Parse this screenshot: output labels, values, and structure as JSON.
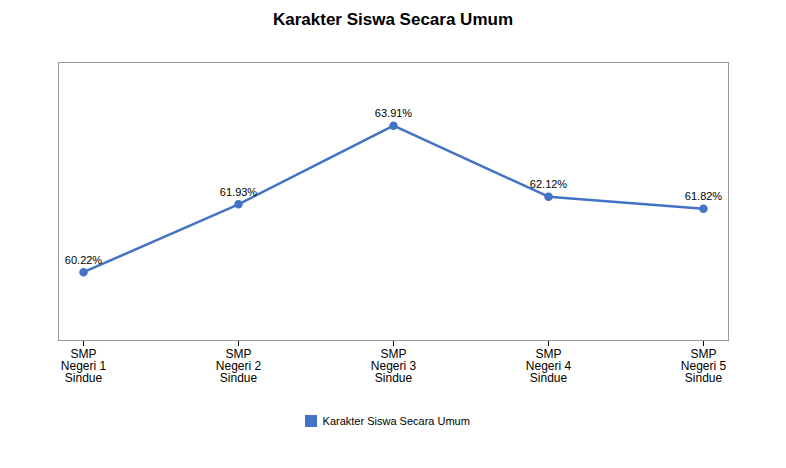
{
  "chart_data": {
    "type": "line",
    "title": "Karakter Siswa Secara Umum",
    "categories": [
      "SMP\nNegeri 1\nSindue",
      "SMP\nNegeri 2\nSindue",
      "SMP\nNegeri 3\nSindue",
      "SMP\nNegeri 4\nSindue",
      "SMP\nNegeri 5\nSindue"
    ],
    "series": [
      {
        "name": "Karakter Siswa Secara Umum",
        "color": "#4472C4",
        "marker": "circle",
        "values": [
          60.22,
          61.93,
          63.91,
          62.12,
          61.82
        ],
        "value_labels": [
          "60.22%",
          "61.93%",
          "63.91%",
          "62.12%",
          "61.82%"
        ]
      }
    ],
    "ylim": [
      58.5,
      65.5
    ],
    "tick_labels": "x",
    "data_labels": true,
    "legend": "bottom"
  }
}
